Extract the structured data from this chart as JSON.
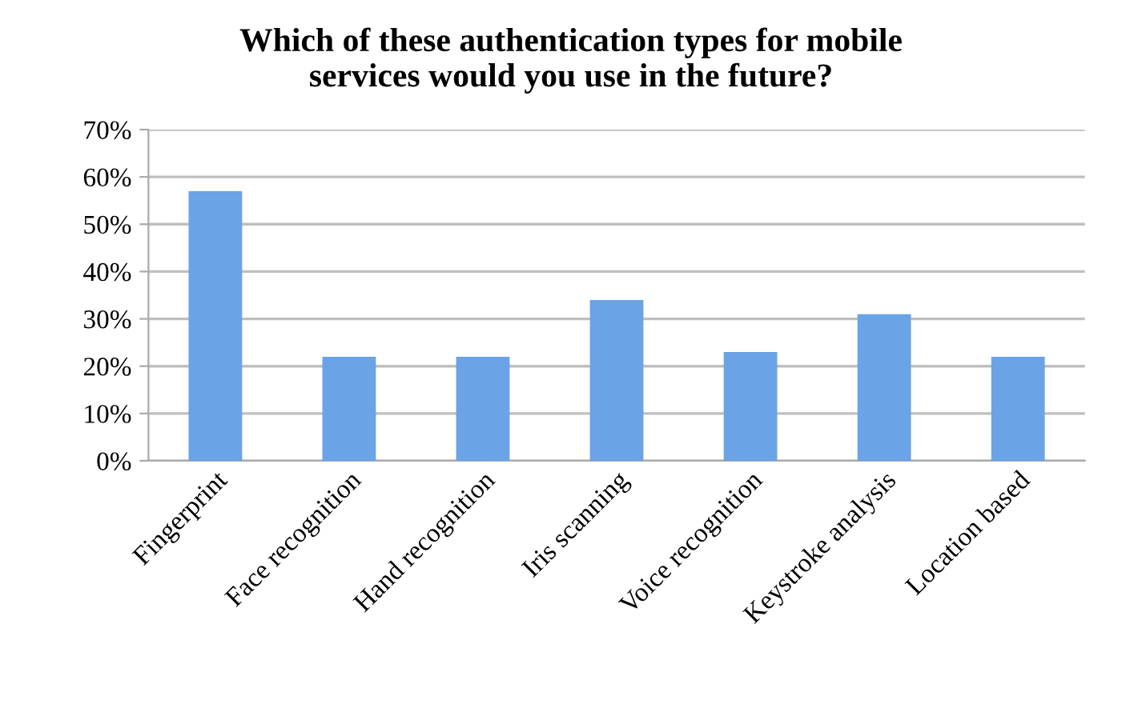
{
  "chart_data": {
    "type": "bar",
    "title": "Which of these authentication types for mobile\nservices would you use in the future?",
    "categories": [
      "Fingerprint",
      "Face recognition",
      "Hand recognition",
      "Iris scanning",
      "Voice recognition",
      "Keystroke analysis",
      "Location based"
    ],
    "values": [
      57,
      22,
      22,
      34,
      23,
      31,
      22
    ],
    "color": "#6aa3e6",
    "ylim": [
      0,
      70
    ],
    "yticks": [
      {
        "value": 0,
        "label": "0%"
      },
      {
        "value": 10,
        "label": "10%"
      },
      {
        "value": 20,
        "label": "20%"
      },
      {
        "value": 30,
        "label": "30%"
      },
      {
        "value": 40,
        "label": "40%"
      },
      {
        "value": 50,
        "label": "50%"
      },
      {
        "value": 60,
        "label": "60%"
      },
      {
        "value": 70,
        "label": "70%"
      }
    ],
    "grid": "y"
  }
}
